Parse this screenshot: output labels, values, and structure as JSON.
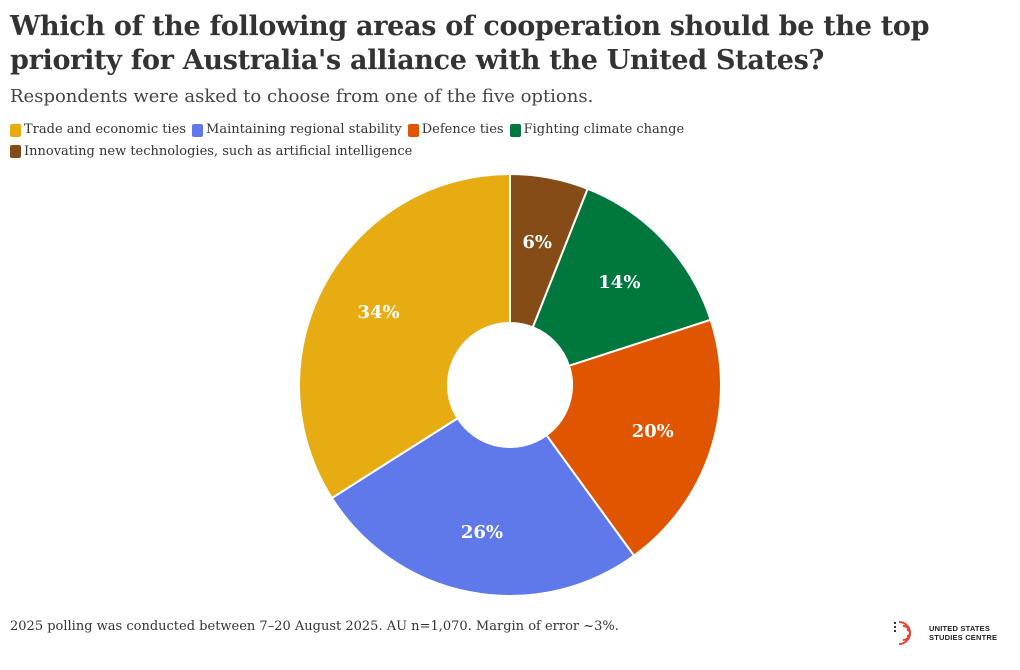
{
  "title": "Which of the following areas of cooperation should be the top priority for Australia's alliance with the United States?",
  "subtitle": "Respondents were asked to choose from one of the five options.",
  "footnote": "2025 polling was conducted between 7–20 August 2025. AU n=1,070. Margin of error ~3%.",
  "logo": {
    "line1": "UNITED STATES",
    "line2": "STUDIES CENTRE",
    "icon": "usssc-logo-icon"
  },
  "chart_data": {
    "type": "pie",
    "donut": true,
    "start": "top",
    "direction": "clockwise",
    "legend_position": "top-left",
    "slices": [
      {
        "label": "Innovating new technologies, such as artificial intelligence",
        "value": 6,
        "display": "6%",
        "color": "#854C17"
      },
      {
        "label": "Fighting climate change",
        "value": 14,
        "display": "14%",
        "color": "#00773C"
      },
      {
        "label": "Defence ties",
        "value": 20,
        "display": "20%",
        "color": "#E05500"
      },
      {
        "label": "Maintaining regional stability",
        "value": 26,
        "display": "26%",
        "color": "#5F79EA"
      },
      {
        "label": "Trade and economic ties",
        "value": 34,
        "display": "34%",
        "color": "#E6AC11"
      }
    ],
    "legend_order": [
      "Trade and economic ties",
      "Maintaining regional stability",
      "Defence ties",
      "Fighting climate change",
      "Innovating new technologies, such as artificial intelligence"
    ]
  }
}
